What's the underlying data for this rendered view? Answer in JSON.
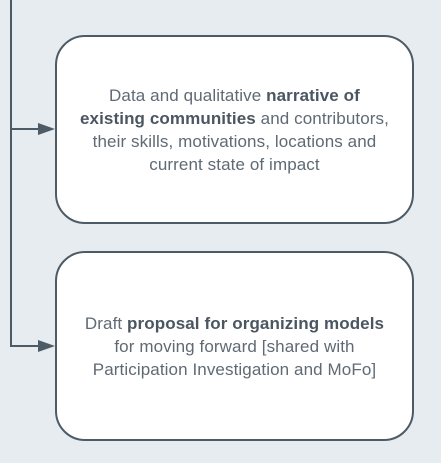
{
  "boxes": [
    {
      "segments": [
        {
          "text": "Data and qualitative ",
          "bold": false
        },
        {
          "text": "narrative of existing communities",
          "bold": true
        },
        {
          "text": " and contributors, their skills, motivations, locations and current state of impact",
          "bold": false
        }
      ]
    },
    {
      "segments": [
        {
          "text": "Draft ",
          "bold": false
        },
        {
          "text": "proposal for organizing models",
          "bold": true
        },
        {
          "text": " for moving forward [shared with Participation Investigation and MoFo]",
          "bold": false
        }
      ]
    }
  ],
  "colors": {
    "background": "#e7ecf0",
    "box_fill": "#ffffff",
    "stroke": "#4d5b67",
    "text": "#5f6a74",
    "text_bold": "#4b5661"
  }
}
